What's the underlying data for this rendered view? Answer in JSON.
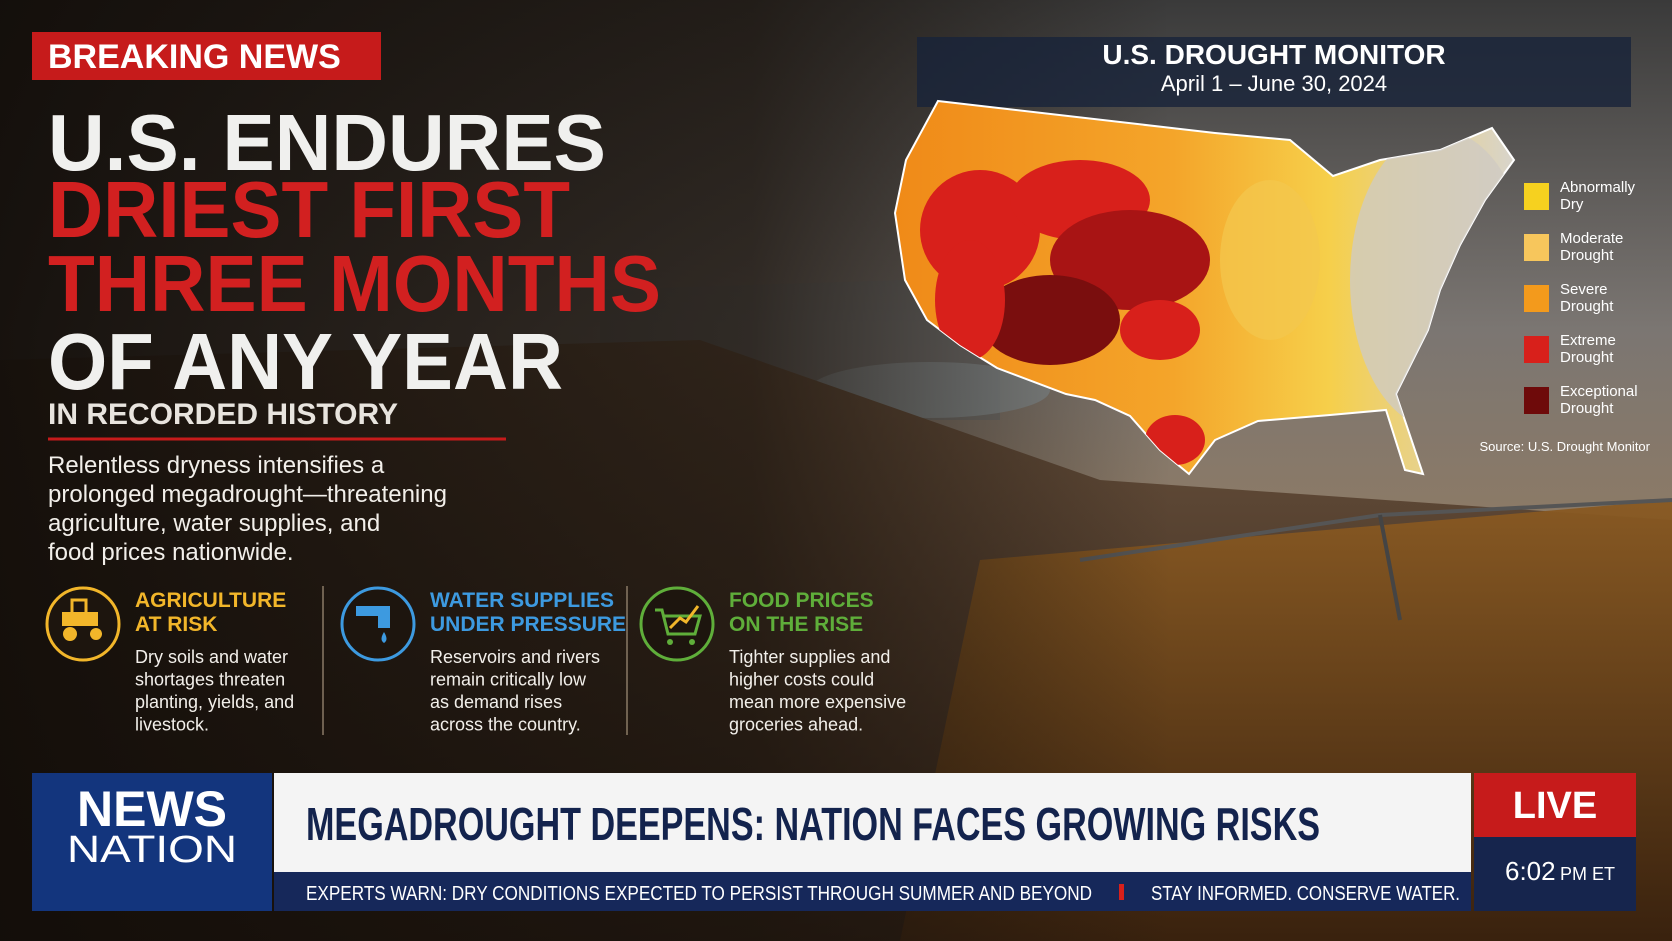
{
  "header": {
    "badge": "BREAKING NEWS",
    "headline": [
      "U.S. ENDURES",
      "DRIEST FIRST",
      "THREE MONTHS",
      "OF ANY YEAR"
    ],
    "subhead": "IN RECORDED HISTORY",
    "summary": [
      "Relentless dryness intensifies a",
      "prolonged megadrought—threatening",
      "agriculture, water supplies, and",
      "food prices nationwide."
    ]
  },
  "impacts": [
    {
      "title": [
        "AGRICULTURE",
        "AT RISK"
      ],
      "body": [
        "Dry soils and water",
        "shortages threaten",
        "planting, yields, and",
        "livestock."
      ]
    },
    {
      "title": [
        "WATER SUPPLIES",
        "UNDER PRESSURE"
      ],
      "body": [
        "Reservoirs and rivers",
        "remain critically low",
        "as demand rises",
        "across the country."
      ]
    },
    {
      "title": [
        "FOOD PRICES",
        "ON THE RISE"
      ],
      "body": [
        "Tighter supplies and",
        "higher costs could",
        "mean more expensive",
        "groceries ahead."
      ]
    }
  ],
  "map": {
    "title": "U.S. DROUGHT MONITOR",
    "period": "April 1 – June 30, 2024",
    "legend": [
      {
        "label": [
          "Abnormally",
          "Dry"
        ],
        "color": "#f6d11f"
      },
      {
        "label": [
          "Moderate",
          "Drought"
        ],
        "color": "#f7c65c"
      },
      {
        "label": [
          "Severe",
          "Drought"
        ],
        "color": "#f39a1c"
      },
      {
        "label": [
          "Extreme",
          "Drought"
        ],
        "color": "#d8201b"
      },
      {
        "label": [
          "Exceptional",
          "Drought"
        ],
        "color": "#6e0a0a"
      }
    ],
    "source": "Source: U.S. Drought Monitor"
  },
  "lower_third": {
    "brand": [
      "NEWS",
      "NATION"
    ],
    "headline": "MEGADROUGHT DEEPENS: NATION FACES GROWING RISKS",
    "ticker": [
      "EXPERTS WARN: DRY CONDITIONS EXPECTED TO PERSIST THROUGH SUMMER AND BEYOND",
      "STAY INFORMED. CONSERVE WATER."
    ],
    "live": "LIVE",
    "time": "6:02",
    "zone": "PM ET"
  }
}
